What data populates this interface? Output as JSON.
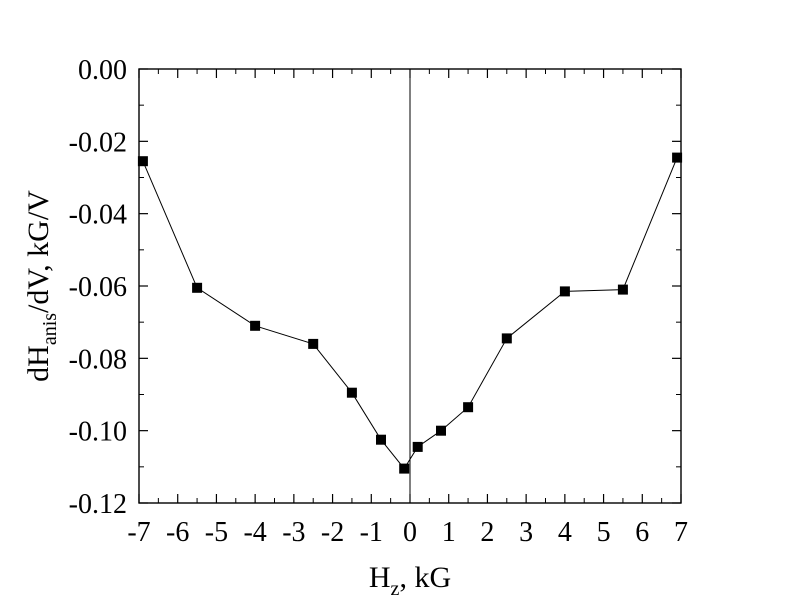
{
  "chart_data": {
    "type": "line",
    "title": "",
    "xlabel": {
      "main": "H",
      "sub": "z",
      "rest": ", kG"
    },
    "ylabel": {
      "main": "dH",
      "sub": "anis",
      "rest": "/dV, kG/V"
    },
    "xlim": [
      -7,
      7
    ],
    "ylim": [
      -0.12,
      0
    ],
    "x_ticks": [
      -7,
      -6,
      -5,
      -4,
      -3,
      -2,
      -1,
      0,
      1,
      2,
      3,
      4,
      5,
      6,
      7
    ],
    "y_ticks": [
      0,
      -0.02,
      -0.04,
      -0.06,
      -0.08,
      -0.1,
      -0.12
    ],
    "x_tick_labels": [
      "-7",
      "-6",
      "-5",
      "-4",
      "-3",
      "-2",
      "-1",
      "0",
      "1",
      "2",
      "3",
      "4",
      "5",
      "6",
      "7"
    ],
    "y_tick_labels": [
      "0.00",
      "-0.02",
      "-0.04",
      "-0.06",
      "-0.08",
      "-0.10",
      "-0.12"
    ],
    "grid": false,
    "vertical_reference_line_at_x": 0,
    "marker": "square",
    "series": [
      {
        "x": [
          -6.9,
          -5.5,
          -4.0,
          -2.5,
          -1.5,
          -0.75,
          -0.15,
          0.2,
          0.8,
          1.5,
          2.5,
          4.0,
          5.5,
          6.9
        ],
        "y": [
          -0.0255,
          -0.0605,
          -0.071,
          -0.076,
          -0.0895,
          -0.1025,
          -0.1105,
          -0.1045,
          -0.1,
          -0.0935,
          -0.0745,
          -0.0615,
          -0.061,
          -0.0245
        ]
      }
    ]
  }
}
